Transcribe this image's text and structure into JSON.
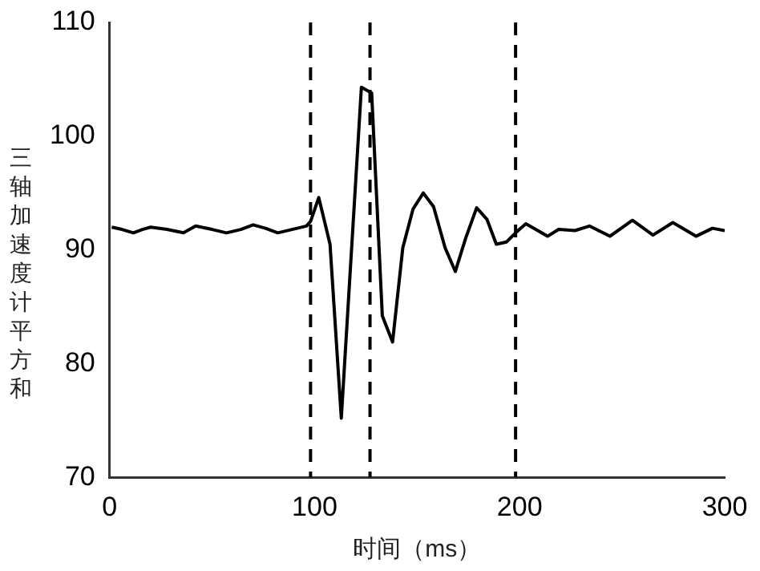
{
  "chart_data": {
    "type": "line",
    "xlabel": "时间（ms）",
    "ylabel": "三轴加速度计平方和",
    "x": [
      1,
      6,
      11.6,
      16,
      20,
      28,
      36,
      42,
      50,
      57,
      64,
      70,
      76,
      82,
      89,
      96,
      98,
      102,
      107.5,
      113,
      122.8,
      127.8,
      133,
      138,
      143,
      148,
      153,
      158,
      163.6,
      168.6,
      173.6,
      179,
      184,
      188.6,
      193.6,
      198,
      203,
      213.6,
      219,
      227,
      234,
      244,
      255,
      265,
      274.7,
      286,
      294,
      300
    ],
    "series": [
      {
        "color": "#000000",
        "values": [
          92,
          91.8,
          91.5,
          91.8,
          92,
          91.8,
          91.5,
          92.1,
          91.8,
          91.5,
          91.8,
          92.2,
          91.9,
          91.5,
          91.8,
          92.1,
          92.5,
          94.6,
          90.5,
          75.2,
          104.3,
          103.8,
          84.2,
          81.9,
          90.2,
          93.6,
          95,
          93.8,
          90.2,
          88.1,
          91,
          93.7,
          92.7,
          90.5,
          90.7,
          91.5,
          92.3,
          91.2,
          91.8,
          91.7,
          92.1,
          91.2,
          92.6,
          91.3,
          92.4,
          91.2,
          91.9,
          91.7
        ]
      }
    ],
    "xlim": [
      0,
      300
    ],
    "xticks": [
      0,
      100,
      200,
      300
    ],
    "ylim": [
      70,
      110
    ],
    "yticks": [
      70,
      80,
      90,
      100,
      110
    ],
    "grid": false,
    "legend": false,
    "marker": "none",
    "line_style": "solid",
    "ref_lines": [
      {
        "axis": "x",
        "value": 98,
        "color": "#000000",
        "line_style": "dashed"
      },
      {
        "axis": "x",
        "value": 127,
        "color": "#000000",
        "line_style": "dashed"
      },
      {
        "axis": "x",
        "value": 198,
        "color": "#000000",
        "line_style": "dashed"
      }
    ]
  }
}
